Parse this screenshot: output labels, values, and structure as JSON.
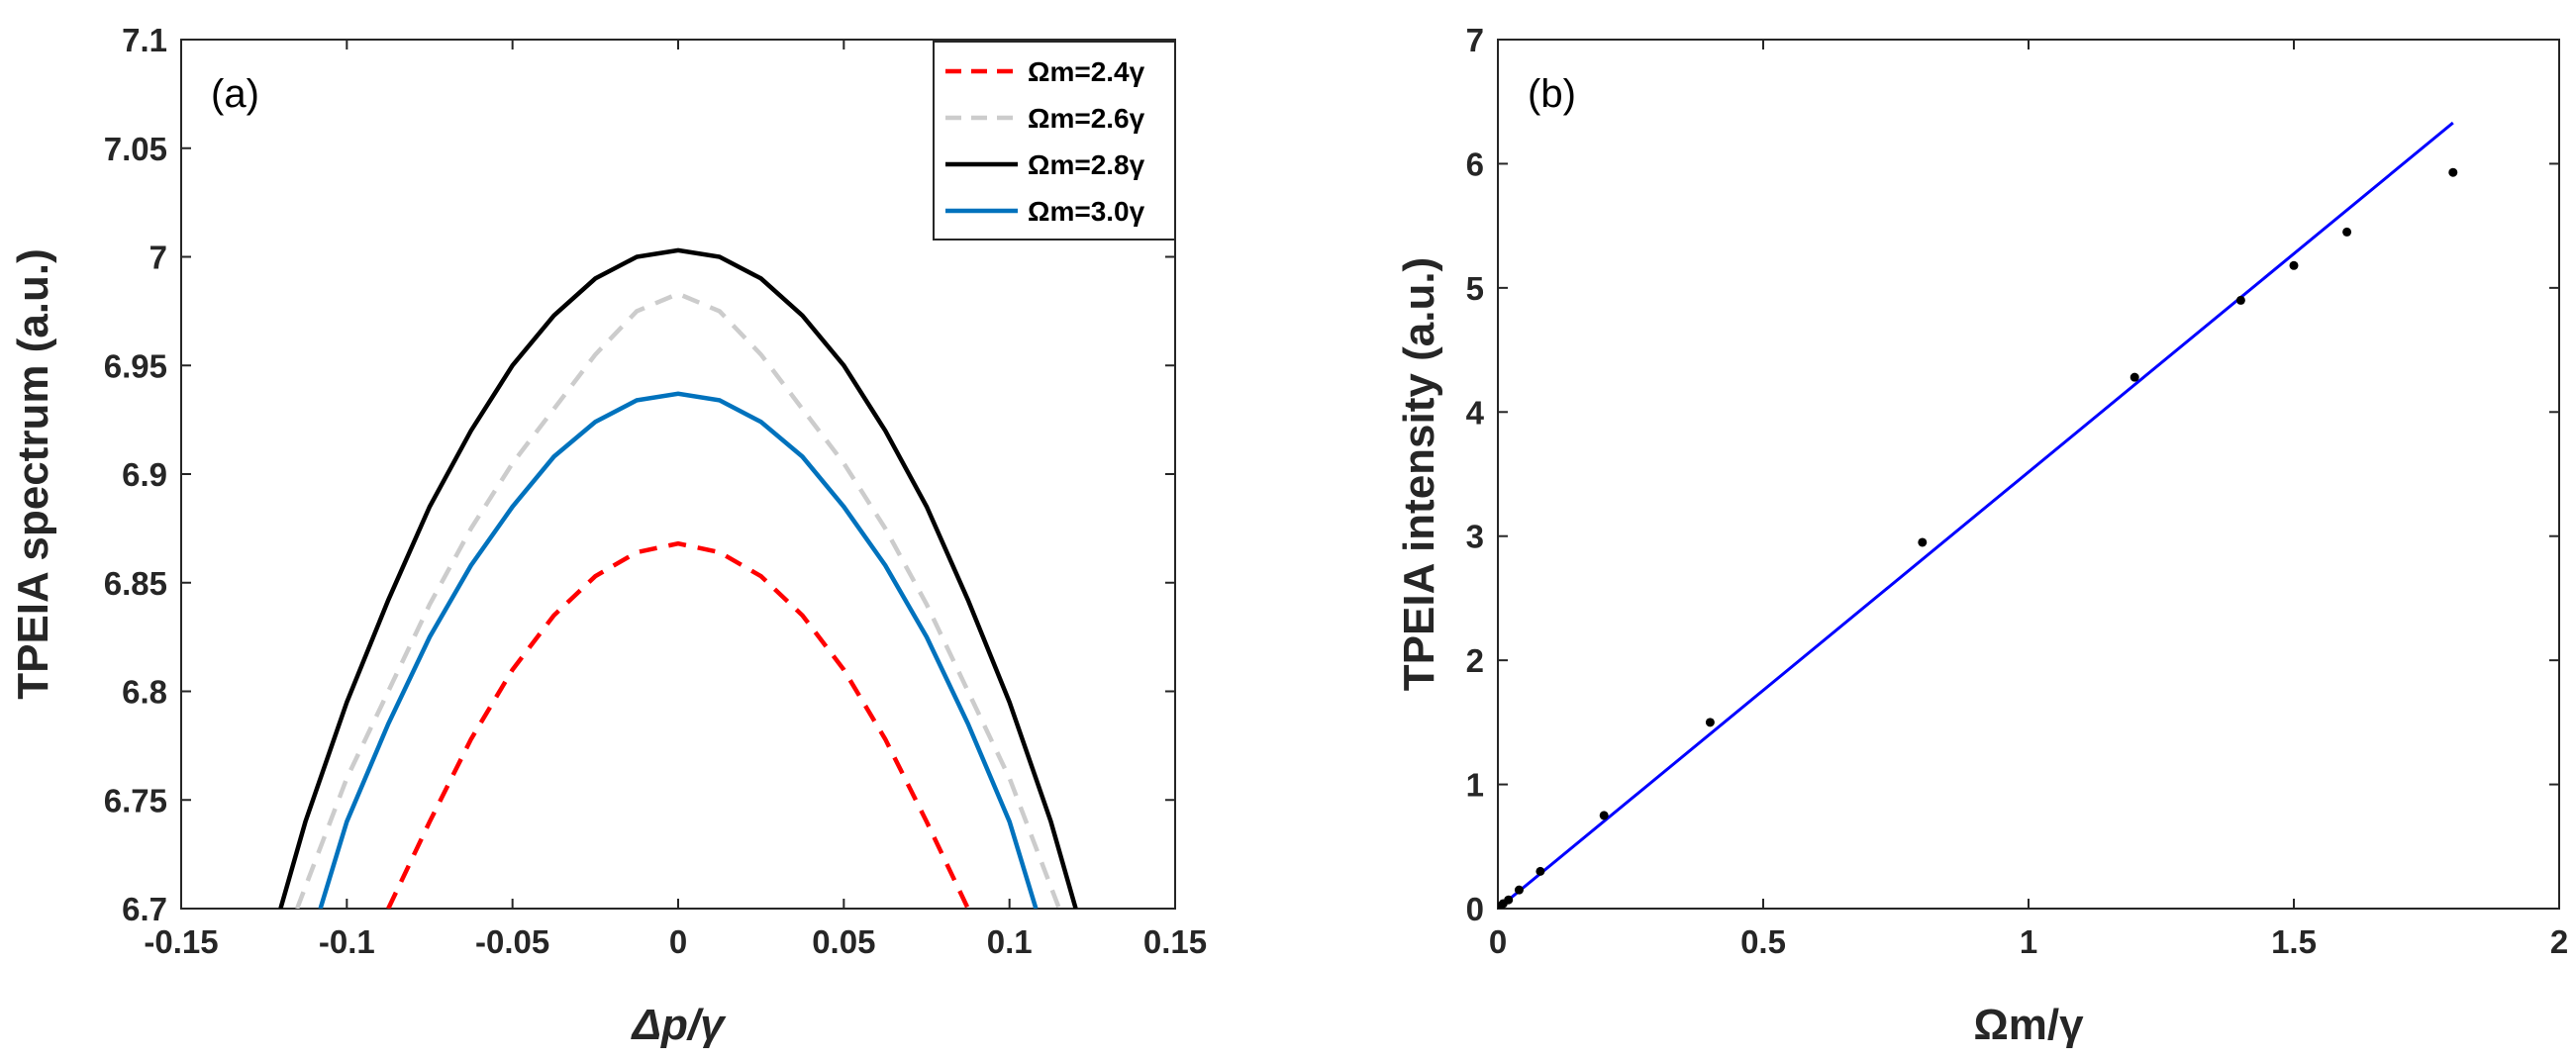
{
  "chart_data": [
    {
      "panel": "a",
      "type": "line",
      "panel_label": "(a)",
      "xlabel": "Δp/γ",
      "ylabel": "TPEIA spectrum (a.u.)",
      "xlim": [
        -0.15,
        0.15
      ],
      "ylim": [
        6.7,
        7.1
      ],
      "xticks": [
        -0.15,
        -0.1,
        -0.05,
        0,
        0.05,
        0.1,
        0.15
      ],
      "xtick_labels": [
        "-0.15",
        "-0.1",
        "-0.05",
        "0",
        "0.05",
        "0.1",
        "0.15"
      ],
      "yticks": [
        6.7,
        6.75,
        6.8,
        6.85,
        6.9,
        6.95,
        7,
        7.05,
        7.1
      ],
      "ytick_labels": [
        "6.7",
        "6.75",
        "6.8",
        "6.85",
        "6.9",
        "6.95",
        "7",
        "7.05",
        "7.1"
      ],
      "legend_position": "top-right",
      "series": [
        {
          "name": "Ωm=2.4γ",
          "color": "#ff0000",
          "style": "dashed",
          "x": [
            -0.0875,
            -0.075,
            -0.0625,
            -0.05,
            -0.0375,
            -0.025,
            -0.0125,
            0,
            0.0125,
            0.025,
            0.0375,
            0.05,
            0.0625,
            0.075,
            0.0875
          ],
          "y": [
            6.7,
            6.74,
            6.778,
            6.81,
            6.835,
            6.853,
            6.864,
            6.868,
            6.864,
            6.853,
            6.835,
            6.81,
            6.778,
            6.74,
            6.7
          ]
        },
        {
          "name": "Ωm=2.6γ",
          "color": "#cccccc",
          "style": "dashed",
          "x": [
            -0.115,
            -0.1,
            -0.0875,
            -0.075,
            -0.0625,
            -0.05,
            -0.0375,
            -0.025,
            -0.0125,
            0,
            0.0125,
            0.025,
            0.0375,
            0.05,
            0.0625,
            0.075,
            0.0875,
            0.1,
            0.115
          ],
          "y": [
            6.7,
            6.76,
            6.8,
            6.84,
            6.875,
            6.905,
            6.93,
            6.955,
            6.975,
            6.983,
            6.975,
            6.955,
            6.93,
            6.905,
            6.875,
            6.84,
            6.8,
            6.76,
            6.7
          ]
        },
        {
          "name": "Ωm=2.8γ",
          "color": "#000000",
          "style": "solid",
          "x": [
            -0.12,
            -0.1125,
            -0.1,
            -0.0875,
            -0.075,
            -0.0625,
            -0.05,
            -0.0375,
            -0.025,
            -0.0125,
            0,
            0.0125,
            0.025,
            0.0375,
            0.05,
            0.0625,
            0.075,
            0.0875,
            0.1,
            0.1125,
            0.12
          ],
          "y": [
            6.7,
            6.74,
            6.795,
            6.842,
            6.885,
            6.92,
            6.95,
            6.973,
            6.99,
            7.0,
            7.003,
            7.0,
            6.99,
            6.973,
            6.95,
            6.92,
            6.885,
            6.842,
            6.795,
            6.74,
            6.7
          ]
        },
        {
          "name": "Ωm=3.0γ",
          "color": "#0072bd",
          "style": "solid",
          "x": [
            -0.108,
            -0.1,
            -0.0875,
            -0.075,
            -0.0625,
            -0.05,
            -0.0375,
            -0.025,
            -0.0125,
            0,
            0.0125,
            0.025,
            0.0375,
            0.05,
            0.0625,
            0.075,
            0.0875,
            0.1,
            0.108
          ],
          "y": [
            6.7,
            6.74,
            6.785,
            6.825,
            6.858,
            6.885,
            6.908,
            6.924,
            6.934,
            6.937,
            6.934,
            6.924,
            6.908,
            6.885,
            6.858,
            6.825,
            6.785,
            6.74,
            6.7
          ]
        }
      ]
    },
    {
      "panel": "b",
      "type": "scatter",
      "panel_label": "(b)",
      "xlabel": "Ωm/γ",
      "ylabel": "TPEIA intensity (a.u.)",
      "xlim": [
        0,
        2
      ],
      "ylim": [
        0,
        7
      ],
      "xticks": [
        0,
        0.5,
        1,
        1.5,
        2
      ],
      "xtick_labels": [
        "0",
        "0.5",
        "1",
        "1.5",
        "2"
      ],
      "yticks": [
        0,
        1,
        2,
        3,
        4,
        5,
        6,
        7
      ],
      "ytick_labels": [
        "0",
        "1",
        "2",
        "3",
        "4",
        "5",
        "6",
        "7"
      ],
      "points": {
        "color": "#000000",
        "x": [
          0,
          0.005,
          0.01,
          0.02,
          0.04,
          0.08,
          0.2,
          0.4,
          0.8,
          1.2,
          1.4,
          1.5,
          1.6,
          1.8
        ],
        "y": [
          0,
          0.02,
          0.04,
          0.07,
          0.15,
          0.3,
          0.75,
          1.5,
          2.95,
          4.28,
          4.9,
          5.18,
          5.45,
          5.93
        ]
      },
      "fit_line": {
        "color": "#0000ff",
        "x": [
          0,
          1.8
        ],
        "y": [
          0.0,
          6.33
        ]
      }
    }
  ]
}
